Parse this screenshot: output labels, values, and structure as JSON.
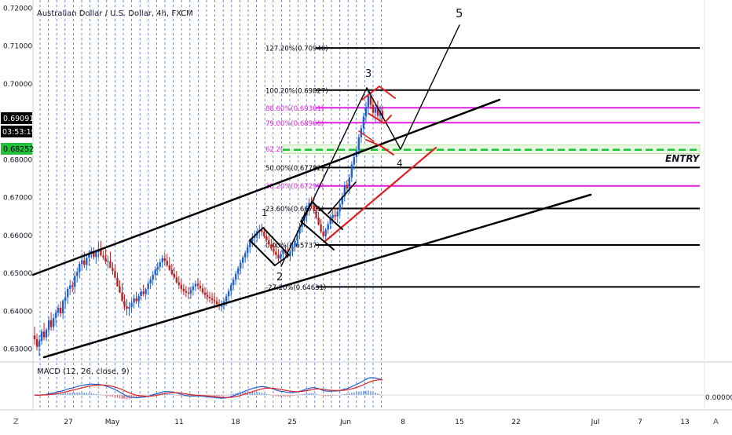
{
  "title": "Australian Dollar / U.S. Dollar, 4h, FXCM",
  "indicator": {
    "label": "MACD (12, 26, close, 9)",
    "zero_label": "0.00000"
  },
  "price_badges": [
    {
      "text": "0.69091",
      "color": "#000000"
    },
    {
      "text": "03:53:19",
      "color": "#000000"
    },
    {
      "text": "0.68252",
      "color": "#22c03c"
    }
  ],
  "y_axis_ticks": [
    "0.72000",
    "0.71000",
    "0.70000",
    "0.69000",
    "0.68000",
    "0.67000",
    "0.66000",
    "0.65000",
    "0.64000",
    "0.63000"
  ],
  "x_axis_ticks": [
    "27",
    "May",
    "11",
    "18",
    "25",
    "Jun",
    "8",
    "15",
    "22",
    "Jul",
    "7",
    "13"
  ],
  "wave_labels": [
    "1",
    "2",
    "3",
    "4",
    "5"
  ],
  "entry_label": "ENTRY",
  "axis_corner_left": "Z",
  "axis_corner_right": "A",
  "colors": {
    "fib_black": "#000000",
    "fib_magenta": "#e020e0",
    "trend_red": "#e02020",
    "entry_green": "#22c03c",
    "candle_up": "#2060d0",
    "candle_down": "#c02020",
    "session": "#3050c0",
    "macd": "#2060d0",
    "signal": "#e02020"
  },
  "chart_data": {
    "type": "candlestick",
    "symbol": "AUDUSD",
    "timeframe": "4h",
    "ylim": [
      0.6275,
      0.7225
    ],
    "fib_levels": [
      {
        "label": "127.20%(0.70940)",
        "price": 0.7094,
        "color": "black"
      },
      {
        "label": "100.20%(0.69827)",
        "price": 0.69827,
        "color": "black"
      },
      {
        "label": "88.60%(0.69361)",
        "price": 0.69361,
        "color": "magenta"
      },
      {
        "label": "79.00%(0.68966)",
        "price": 0.68966,
        "color": "magenta"
      },
      {
        "label": "62.20%(0.68273)",
        "price": 0.68273,
        "color": "magenta"
      },
      {
        "label": "50.00%(0.67782)",
        "price": 0.67782,
        "color": "black"
      },
      {
        "label": "38.20%(0.67299)",
        "price": 0.67299,
        "color": "magenta"
      },
      {
        "label": "23.60%(0.66701)",
        "price": 0.66701,
        "color": "black"
      },
      {
        "label": "0.00%(0.65737)",
        "price": 0.65737,
        "color": "black"
      },
      {
        "label": "-27.20%(0.64631)",
        "price": 0.64631,
        "color": "black"
      }
    ],
    "last_price": 0.69091,
    "entry_price": 0.68252,
    "candles_ohlc": [
      [
        0.6335,
        0.6358,
        0.631,
        0.6325
      ],
      [
        0.6325,
        0.634,
        0.6295,
        0.6305
      ],
      [
        0.6305,
        0.6335,
        0.628,
        0.632
      ],
      [
        0.632,
        0.6352,
        0.631,
        0.6345
      ],
      [
        0.6345,
        0.6368,
        0.6322,
        0.633
      ],
      [
        0.633,
        0.6355,
        0.632,
        0.635
      ],
      [
        0.635,
        0.6384,
        0.6335,
        0.6375
      ],
      [
        0.6375,
        0.6396,
        0.6347,
        0.6357
      ],
      [
        0.6357,
        0.6392,
        0.6347,
        0.6381
      ],
      [
        0.6381,
        0.6404,
        0.6361,
        0.6395
      ],
      [
        0.6395,
        0.6417,
        0.6385,
        0.6408
      ],
      [
        0.6408,
        0.6425,
        0.6383,
        0.6393
      ],
      [
        0.6393,
        0.6431,
        0.6378,
        0.6426
      ],
      [
        0.6426,
        0.6453,
        0.6404,
        0.6436
      ],
      [
        0.6436,
        0.6464,
        0.6418,
        0.6458
      ],
      [
        0.6458,
        0.6482,
        0.6441,
        0.6467
      ],
      [
        0.6467,
        0.6479,
        0.6449,
        0.6463
      ],
      [
        0.6463,
        0.6505,
        0.6445,
        0.6492
      ],
      [
        0.6492,
        0.6514,
        0.6475,
        0.6502
      ],
      [
        0.6502,
        0.653,
        0.6485,
        0.6524
      ],
      [
        0.6524,
        0.6552,
        0.6506,
        0.6533
      ],
      [
        0.6533,
        0.6556,
        0.6513,
        0.6521
      ],
      [
        0.6521,
        0.6546,
        0.6506,
        0.654
      ],
      [
        0.654,
        0.6559,
        0.6519,
        0.6551
      ],
      [
        0.6551,
        0.6568,
        0.6538,
        0.6557
      ],
      [
        0.6557,
        0.6568,
        0.6535,
        0.6542
      ],
      [
        0.6542,
        0.6561,
        0.6524,
        0.6555
      ],
      [
        0.6555,
        0.6582,
        0.6538,
        0.6563
      ],
      [
        0.6563,
        0.6585,
        0.6544,
        0.6546
      ],
      [
        0.6546,
        0.6559,
        0.6534,
        0.6541
      ],
      [
        0.6541,
        0.6563,
        0.6523,
        0.653
      ],
      [
        0.653,
        0.6546,
        0.6512,
        0.6531
      ],
      [
        0.6531,
        0.6556,
        0.6513,
        0.6513
      ],
      [
        0.6513,
        0.6528,
        0.6495,
        0.6505
      ],
      [
        0.6505,
        0.6522,
        0.649,
        0.6487
      ],
      [
        0.6487,
        0.6501,
        0.6468,
        0.6464
      ],
      [
        0.6464,
        0.648,
        0.6447,
        0.6448
      ],
      [
        0.6448,
        0.6472,
        0.6426,
        0.6425
      ],
      [
        0.6425,
        0.6443,
        0.6401,
        0.6412
      ],
      [
        0.6412,
        0.6431,
        0.6388,
        0.6405
      ],
      [
        0.6405,
        0.6423,
        0.6386,
        0.641
      ],
      [
        0.641,
        0.643,
        0.6394,
        0.6421
      ],
      [
        0.6421,
        0.6443,
        0.6406,
        0.6433
      ],
      [
        0.6433,
        0.645,
        0.6418,
        0.6425
      ],
      [
        0.6425,
        0.6445,
        0.6409,
        0.6439
      ],
      [
        0.6439,
        0.6458,
        0.6427,
        0.6451
      ],
      [
        0.6451,
        0.6469,
        0.6438,
        0.6444
      ],
      [
        0.6444,
        0.6461,
        0.6429,
        0.6457
      ],
      [
        0.6457,
        0.6479,
        0.6441,
        0.6472
      ],
      [
        0.6472,
        0.649,
        0.6457,
        0.6482
      ],
      [
        0.6482,
        0.6505,
        0.6467,
        0.6495
      ],
      [
        0.6495,
        0.6517,
        0.648,
        0.6509
      ],
      [
        0.6509,
        0.6528,
        0.6493,
        0.6516
      ],
      [
        0.6516,
        0.6537,
        0.6504,
        0.6528
      ],
      [
        0.6528,
        0.6547,
        0.6513,
        0.6539
      ],
      [
        0.6539,
        0.6554,
        0.6521,
        0.6532
      ],
      [
        0.6532,
        0.655,
        0.6515,
        0.652
      ],
      [
        0.652,
        0.6542,
        0.6505,
        0.6508
      ],
      [
        0.6508,
        0.6524,
        0.6493,
        0.6497
      ],
      [
        0.6497,
        0.6515,
        0.6484,
        0.6488
      ],
      [
        0.6488,
        0.6505,
        0.6472,
        0.6475
      ],
      [
        0.6475,
        0.6491,
        0.6458,
        0.6468
      ],
      [
        0.6468,
        0.6483,
        0.6449,
        0.6458
      ],
      [
        0.6458,
        0.6471,
        0.6441,
        0.6452
      ],
      [
        0.6452,
        0.6465,
        0.6436,
        0.6448
      ],
      [
        0.6448,
        0.6463,
        0.6431,
        0.6446
      ],
      [
        0.6446,
        0.6465,
        0.6432,
        0.6455
      ],
      [
        0.6455,
        0.6474,
        0.644,
        0.6464
      ],
      [
        0.6464,
        0.648,
        0.6452,
        0.6471
      ],
      [
        0.6471,
        0.6486,
        0.6457,
        0.6466
      ],
      [
        0.6466,
        0.648,
        0.6451,
        0.6459
      ],
      [
        0.6459,
        0.6472,
        0.6443,
        0.6448
      ],
      [
        0.6448,
        0.6462,
        0.6432,
        0.6442
      ],
      [
        0.6442,
        0.6455,
        0.6425,
        0.6437
      ],
      [
        0.6437,
        0.645,
        0.6421,
        0.6433
      ],
      [
        0.6433,
        0.6448,
        0.6418,
        0.6429
      ],
      [
        0.6429,
        0.6445,
        0.6414,
        0.6425
      ],
      [
        0.6425,
        0.6437,
        0.6408,
        0.6418
      ],
      [
        0.6418,
        0.6431,
        0.6402,
        0.6411
      ],
      [
        0.6411,
        0.6428,
        0.6398,
        0.6414
      ],
      [
        0.6414,
        0.6433,
        0.6402,
        0.6425
      ],
      [
        0.6425,
        0.6445,
        0.6412,
        0.6438
      ],
      [
        0.6438,
        0.6459,
        0.6425,
        0.6452
      ],
      [
        0.6452,
        0.6474,
        0.6438,
        0.6468
      ],
      [
        0.6468,
        0.6489,
        0.6453,
        0.6482
      ],
      [
        0.6482,
        0.6505,
        0.6468,
        0.6498
      ],
      [
        0.6498,
        0.6518,
        0.6482,
        0.6512
      ],
      [
        0.6512,
        0.6534,
        0.6497,
        0.6527
      ],
      [
        0.6527,
        0.6547,
        0.6511,
        0.6541
      ],
      [
        0.6541,
        0.6559,
        0.6527,
        0.6552
      ],
      [
        0.6552,
        0.6579,
        0.6538,
        0.6568
      ],
      [
        0.6568,
        0.6591,
        0.6552,
        0.6584
      ],
      [
        0.6584,
        0.6605,
        0.6568,
        0.6592
      ],
      [
        0.6592,
        0.6612,
        0.6577,
        0.6598
      ],
      [
        0.6598,
        0.6618,
        0.6583,
        0.6609
      ],
      [
        0.6609,
        0.6627,
        0.6591,
        0.6614
      ],
      [
        0.6614,
        0.663,
        0.6597,
        0.6608
      ],
      [
        0.6608,
        0.662,
        0.6591,
        0.6597
      ],
      [
        0.6597,
        0.6612,
        0.6581,
        0.6586
      ],
      [
        0.6586,
        0.6599,
        0.6569,
        0.6575
      ],
      [
        0.6575,
        0.659,
        0.6558,
        0.6564
      ],
      [
        0.6564,
        0.658,
        0.6548,
        0.6556
      ],
      [
        0.6556,
        0.6571,
        0.6537,
        0.6547
      ],
      [
        0.6547,
        0.6563,
        0.6529,
        0.6538
      ],
      [
        0.6538,
        0.6557,
        0.6523,
        0.655
      ],
      [
        0.655,
        0.6568,
        0.6537,
        0.6561
      ],
      [
        0.6561,
        0.6575,
        0.6547,
        0.6552
      ],
      [
        0.6552,
        0.6566,
        0.6539,
        0.6545
      ],
      [
        0.6545,
        0.6562,
        0.6531,
        0.6556
      ],
      [
        0.6556,
        0.6576,
        0.6543,
        0.6569
      ],
      [
        0.6569,
        0.6591,
        0.6556,
        0.6585
      ],
      [
        0.6585,
        0.6612,
        0.6571,
        0.6603
      ],
      [
        0.6603,
        0.6632,
        0.6589,
        0.6621
      ],
      [
        0.6621,
        0.6648,
        0.6607,
        0.6638
      ],
      [
        0.6638,
        0.6664,
        0.6621,
        0.6652
      ],
      [
        0.6652,
        0.6679,
        0.6635,
        0.6668
      ],
      [
        0.6668,
        0.6697,
        0.6651,
        0.6685
      ],
      [
        0.6685,
        0.6701,
        0.6669,
        0.6678
      ],
      [
        0.6678,
        0.6693,
        0.6657,
        0.6664
      ],
      [
        0.6664,
        0.6678,
        0.6642,
        0.6646
      ],
      [
        0.6646,
        0.6661,
        0.6625,
        0.6628
      ],
      [
        0.6628,
        0.6642,
        0.6604,
        0.6609
      ],
      [
        0.6609,
        0.6624,
        0.6591,
        0.6597
      ],
      [
        0.6597,
        0.6619,
        0.6588,
        0.6614
      ],
      [
        0.6614,
        0.6637,
        0.6603,
        0.6629
      ],
      [
        0.6629,
        0.6654,
        0.6615,
        0.6645
      ],
      [
        0.6645,
        0.6666,
        0.663,
        0.6653
      ],
      [
        0.6653,
        0.6672,
        0.6639,
        0.6649
      ],
      [
        0.6649,
        0.6668,
        0.6632,
        0.6662
      ],
      [
        0.6662,
        0.6688,
        0.6649,
        0.6681
      ],
      [
        0.6681,
        0.6712,
        0.6668,
        0.6702
      ],
      [
        0.6702,
        0.6742,
        0.6689,
        0.6731
      ],
      [
        0.6731,
        0.6745,
        0.6712,
        0.6723
      ],
      [
        0.6723,
        0.6761,
        0.6709,
        0.6752
      ],
      [
        0.6752,
        0.6795,
        0.674,
        0.6786
      ],
      [
        0.6786,
        0.6818,
        0.6772,
        0.6806
      ],
      [
        0.6806,
        0.6835,
        0.6789,
        0.6824
      ],
      [
        0.6824,
        0.6867,
        0.6811,
        0.6858
      ],
      [
        0.6858,
        0.6891,
        0.6843,
        0.6882
      ],
      [
        0.6882,
        0.6923,
        0.6864,
        0.6913
      ],
      [
        0.6913,
        0.6952,
        0.6897,
        0.6938
      ],
      [
        0.6938,
        0.6982,
        0.6918,
        0.6968
      ],
      [
        0.6968,
        0.6978,
        0.6932,
        0.6944
      ],
      [
        0.6944,
        0.6962,
        0.6915,
        0.6923
      ],
      [
        0.6923,
        0.6947,
        0.6899,
        0.6935
      ],
      [
        0.6935,
        0.6955,
        0.6908,
        0.6915
      ],
      [
        0.6915,
        0.6942,
        0.6896,
        0.6928
      ],
      [
        0.6928,
        0.6941,
        0.6899,
        0.6909
      ]
    ]
  }
}
